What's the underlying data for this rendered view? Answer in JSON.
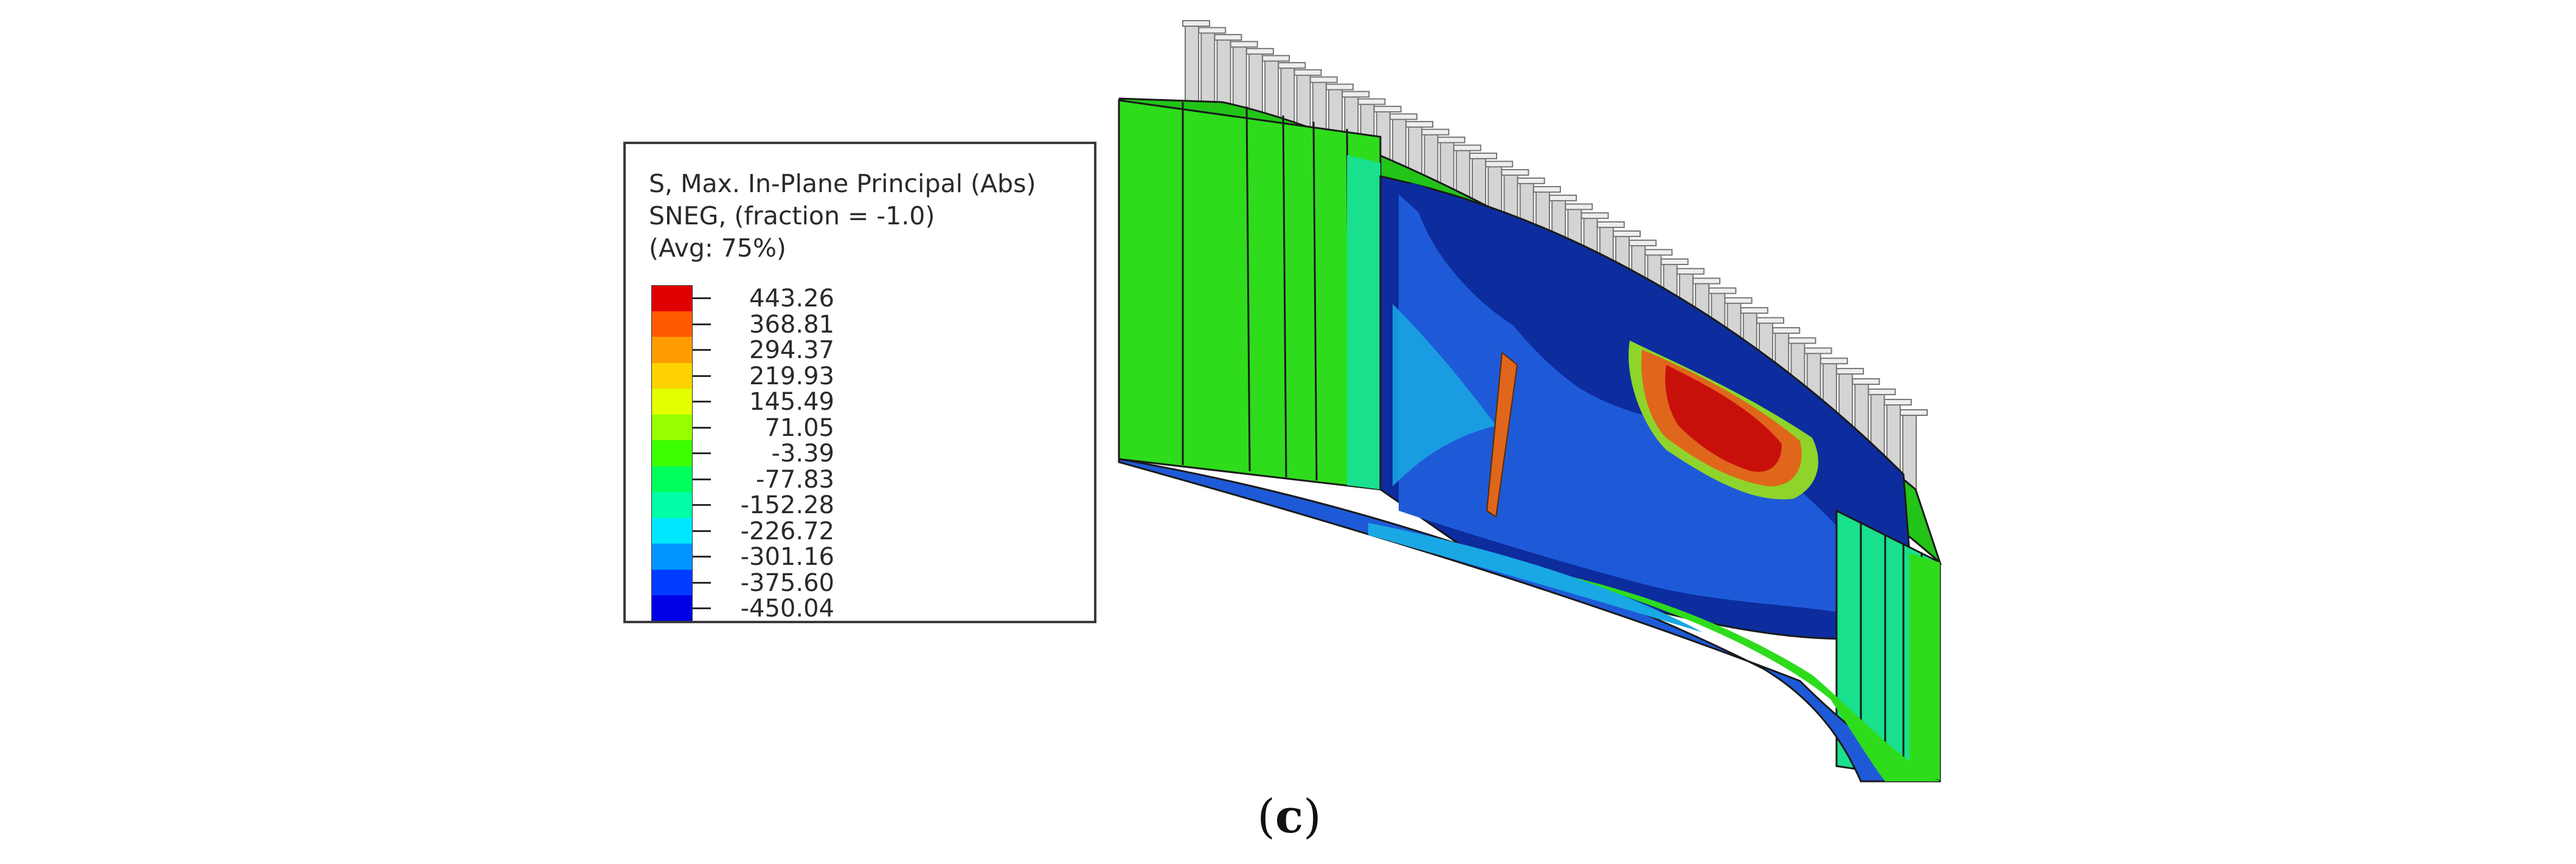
{
  "legend": {
    "title_lines": [
      "S, Max. In-Plane Principal (Abs)",
      "SNEG, (fraction = -1.0)",
      "(Avg: 75%)"
    ],
    "ticks": [
      "443.26",
      "368.81",
      "294.37",
      "219.93",
      "145.49",
      "71.05",
      "-3.39",
      "-77.83",
      "-152.28",
      "-226.72",
      "-301.16",
      "-375.60",
      "-450.04"
    ],
    "colors": [
      "#e00000",
      "#ff5a00",
      "#ff9c00",
      "#ffd200",
      "#e4ff00",
      "#96ff00",
      "#3cff00",
      "#00ff5a",
      "#00ffa8",
      "#00e8ff",
      "#0096ff",
      "#003cff",
      "#0000e6"
    ]
  },
  "figure": {
    "colors": {
      "green": "#2edc1c",
      "teal": "#19e08c",
      "navy": "#0d2c9e",
      "blue": "#1e5ad8",
      "cyan": "#19a8e4",
      "red": "#c8100a",
      "orange": "#e0661c",
      "pile": "#d4d4d4"
    }
  },
  "caption": {
    "open": "(",
    "letter": "c",
    "close": ")"
  }
}
